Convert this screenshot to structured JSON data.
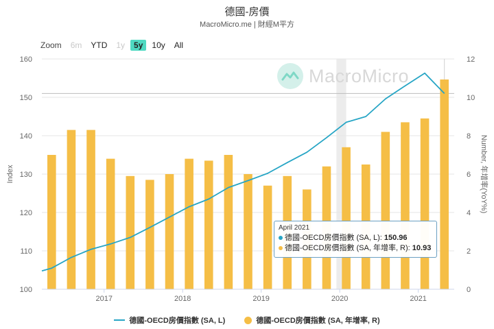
{
  "header": {
    "title": "德國-房價",
    "subtitle": "MacroMicro.me | 財經M平方"
  },
  "zoom": {
    "label": "Zoom",
    "buttons": [
      {
        "label": "6m",
        "state": "disabled"
      },
      {
        "label": "YTD",
        "state": "enabled"
      },
      {
        "label": "1y",
        "state": "disabled"
      },
      {
        "label": "5y",
        "state": "active"
      },
      {
        "label": "10y",
        "state": "enabled"
      },
      {
        "label": "All",
        "state": "enabled"
      }
    ]
  },
  "watermark": {
    "text": "MacroMicro"
  },
  "colors": {
    "line": "#26a5c5",
    "bar": "#f5be46",
    "accent": "#4fd9c1"
  },
  "chart_data": {
    "type": "bar",
    "x": [
      "2016Q2",
      "2016Q3",
      "2016Q4",
      "2017Q1",
      "2017Q2",
      "2017Q3",
      "2017Q4",
      "2018Q1",
      "2018Q2",
      "2018Q3",
      "2018Q4",
      "2019Q1",
      "2019Q2",
      "2019Q3",
      "2019Q4",
      "2020Q1",
      "2020Q2",
      "2020Q3",
      "2020Q4",
      "2021Q1",
      "2021Q2"
    ],
    "xticks": [
      {
        "label": "2017",
        "pos": 3.17
      },
      {
        "label": "2018",
        "pos": 7.17
      },
      {
        "label": "2019",
        "pos": 11.17
      },
      {
        "label": "2020",
        "pos": 15.17
      },
      {
        "label": "2021",
        "pos": 19.17
      }
    ],
    "series": [
      {
        "name": "德國-OECD房價指數 (SA, L)",
        "kind": "line",
        "axis": "left",
        "values": [
          105.5,
          108.3,
          110.4,
          111.8,
          113.5,
          116.1,
          118.8,
          121.5,
          123.5,
          126.5,
          128.3,
          130.2,
          133.0,
          135.7,
          139.5,
          143.5,
          145.0,
          149.6,
          153.0,
          156.3,
          151.0
        ]
      },
      {
        "name": "德國-OECD房價指數 (SA, 年增率, R)",
        "kind": "bar",
        "axis": "right",
        "values": [
          7.0,
          8.3,
          8.3,
          6.8,
          5.9,
          5.7,
          6.0,
          6.8,
          6.7,
          7.0,
          6.0,
          5.4,
          5.9,
          5.2,
          6.4,
          7.4,
          6.5,
          8.2,
          8.7,
          8.9,
          10.93
        ]
      }
    ],
    "ylabel_left": "Index",
    "ylabel_right": "Number, 年增率(YoY%)",
    "ylim_left": [
      100,
      160
    ],
    "ylim_right": [
      0,
      12
    ],
    "yticks_left": [
      100,
      110,
      120,
      130,
      140,
      150,
      160
    ],
    "yticks_right": [
      0,
      2,
      4,
      6,
      8,
      10,
      12
    ],
    "shaded_region": [
      15.0,
      15.5
    ],
    "grid": true,
    "legend": "bottom"
  },
  "tooltip": {
    "date": "April 2021",
    "rows": [
      {
        "label": "德國-OECD房價指數 (SA, L): ",
        "value": "150.96",
        "color": "#26a5c5"
      },
      {
        "label": "德國-OECD房價指數 (SA, 年增率, R): ",
        "value": "10.93",
        "color": "#f5be46"
      }
    ]
  },
  "legend": {
    "items": [
      {
        "label": "德國-OECD房價指數 (SA, L)"
      },
      {
        "label": "德國-OECD房價指數 (SA, 年增率, R)"
      }
    ]
  }
}
